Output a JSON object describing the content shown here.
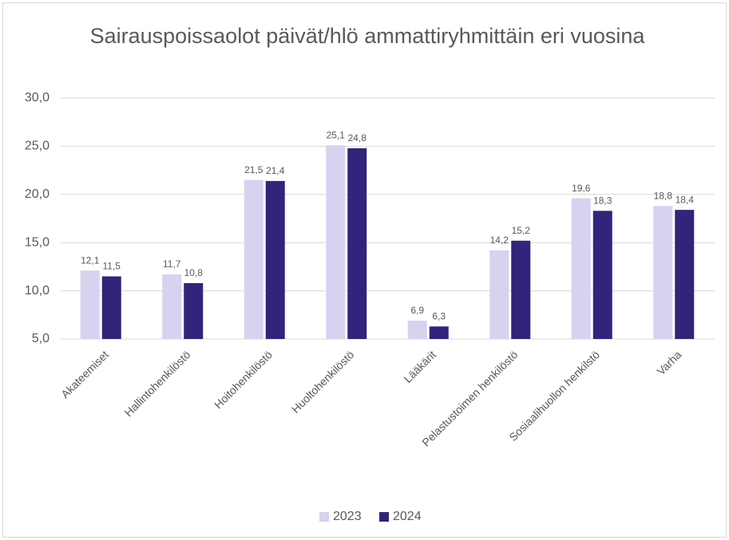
{
  "chart_data": {
    "type": "bar",
    "title": "Sairauspoissaolot päivät/hlö ammattiryhmittäin eri vuosina",
    "categories": [
      "Akateemiset",
      "Hallintohenkilöstö",
      "Hoitohenkilöstö",
      "Huoltohenkilöstö",
      "Lääkärit",
      "Pelastustoimen henkilöstö",
      "Sosiaalihuollon henkilstö",
      "Varha"
    ],
    "series": [
      {
        "name": "2023",
        "color": "#d8d1f0",
        "values": [
          12.1,
          11.7,
          21.5,
          25.1,
          6.9,
          14.2,
          19.6,
          18.8
        ],
        "value_labels": [
          "12,1",
          "11,7",
          "21,5",
          "25,1",
          "6,9",
          "14,2",
          "19,6",
          "18,8"
        ]
      },
      {
        "name": "2024",
        "color": "#33237a",
        "values": [
          11.5,
          10.8,
          21.4,
          24.8,
          6.3,
          15.2,
          18.3,
          18.4
        ],
        "value_labels": [
          "11,5",
          "10,8",
          "21,4",
          "24,8",
          "6,3",
          "15,2",
          "18,3",
          "18,4"
        ]
      }
    ],
    "ylim": [
      5,
      30
    ],
    "yticks": [
      {
        "value": 5,
        "label": "5,0"
      },
      {
        "value": 10,
        "label": "10,0"
      },
      {
        "value": 15,
        "label": "15,0"
      },
      {
        "value": 20,
        "label": "20,0"
      },
      {
        "value": 25,
        "label": "25,0"
      },
      {
        "value": 30,
        "label": "30,0"
      }
    ],
    "grid": true,
    "legend": "bottom"
  }
}
